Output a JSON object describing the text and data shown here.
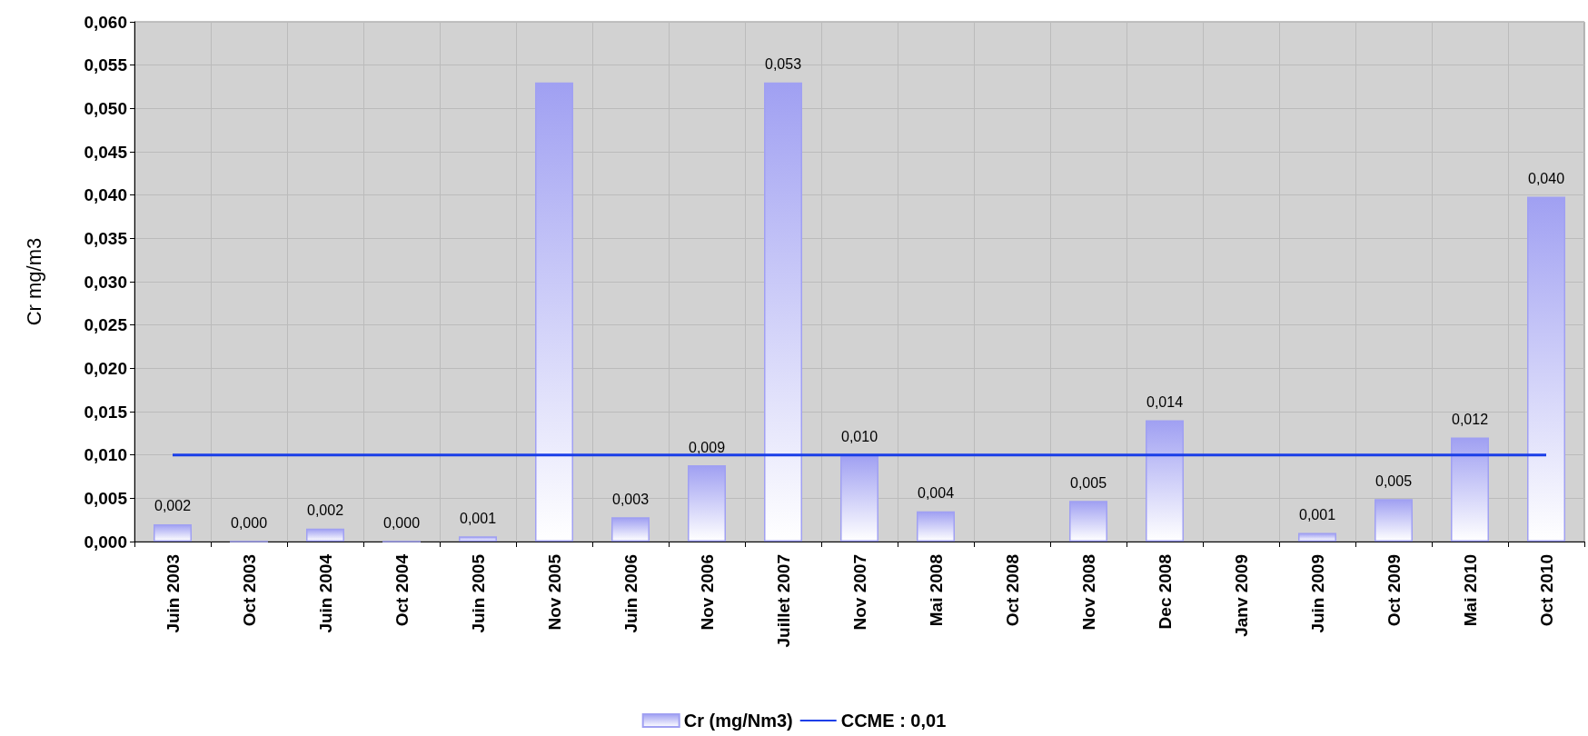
{
  "chart_data": {
    "type": "bar",
    "ylabel": "Cr mg/m3",
    "categories": [
      "Juin 2003",
      "Oct 2003",
      "Juin 2004",
      "Oct 2004",
      "Juin 2005",
      "Nov 2005",
      "Juin 2006",
      "Nov 2006",
      "Juillet 2007",
      "Nov 2007",
      "Mai 2008",
      "Oct 2008",
      "Nov 2008",
      "Dec 2008",
      "Janv 2009",
      "Juin 2009",
      "Oct 2009",
      "Mai 2010",
      "Oct 2010"
    ],
    "series": [
      {
        "name": "Cr (mg/Nm3)",
        "color": "#a0a0f2",
        "values": [
          0.002,
          0,
          0.0015,
          0,
          0.0006,
          0.053,
          0.0028,
          0.0088,
          0.053,
          0.01,
          0.0035,
          null,
          0.0047,
          0.014,
          null,
          0.001,
          0.0049,
          0.012,
          0.0398
        ],
        "value_labels": [
          "0,002",
          "0,000",
          "0,002",
          "0,000",
          "0,001",
          null,
          "0,003",
          "0,009",
          "0,053",
          "0,010",
          "0,004",
          null,
          "0,005",
          "0,014",
          null,
          "0,001",
          "0,005",
          "0,012",
          "0,040"
        ]
      },
      {
        "name": "CCME : 0,01",
        "type": "line",
        "color": "#1a3ee8",
        "marker": "none",
        "values": [
          0.01,
          0.01,
          0.01,
          0.01,
          0.01,
          0.01,
          0.01,
          0.01,
          0.01,
          0.01,
          0.01,
          0.01,
          0.01,
          0.01,
          0.01,
          0.01,
          0.01,
          0.01,
          0.01
        ]
      }
    ],
    "ylim": [
      0,
      0.06
    ],
    "yticks": [
      {
        "value": 0,
        "label": "0,000"
      },
      {
        "value": 0.005,
        "label": "0,005"
      },
      {
        "value": 0.01,
        "label": "0,010"
      },
      {
        "value": 0.015,
        "label": "0,015"
      },
      {
        "value": 0.02,
        "label": "0,020"
      },
      {
        "value": 0.025,
        "label": "0,025"
      },
      {
        "value": 0.03,
        "label": "0,030"
      },
      {
        "value": 0.035,
        "label": "0,035"
      },
      {
        "value": 0.04,
        "label": "0,040"
      },
      {
        "value": 0.045,
        "label": "0,045"
      },
      {
        "value": 0.05,
        "label": "0,050"
      },
      {
        "value": 0.055,
        "label": "0,055"
      },
      {
        "value": 0.06,
        "label": "0,060"
      }
    ],
    "grid": true,
    "legend": "bottom"
  }
}
